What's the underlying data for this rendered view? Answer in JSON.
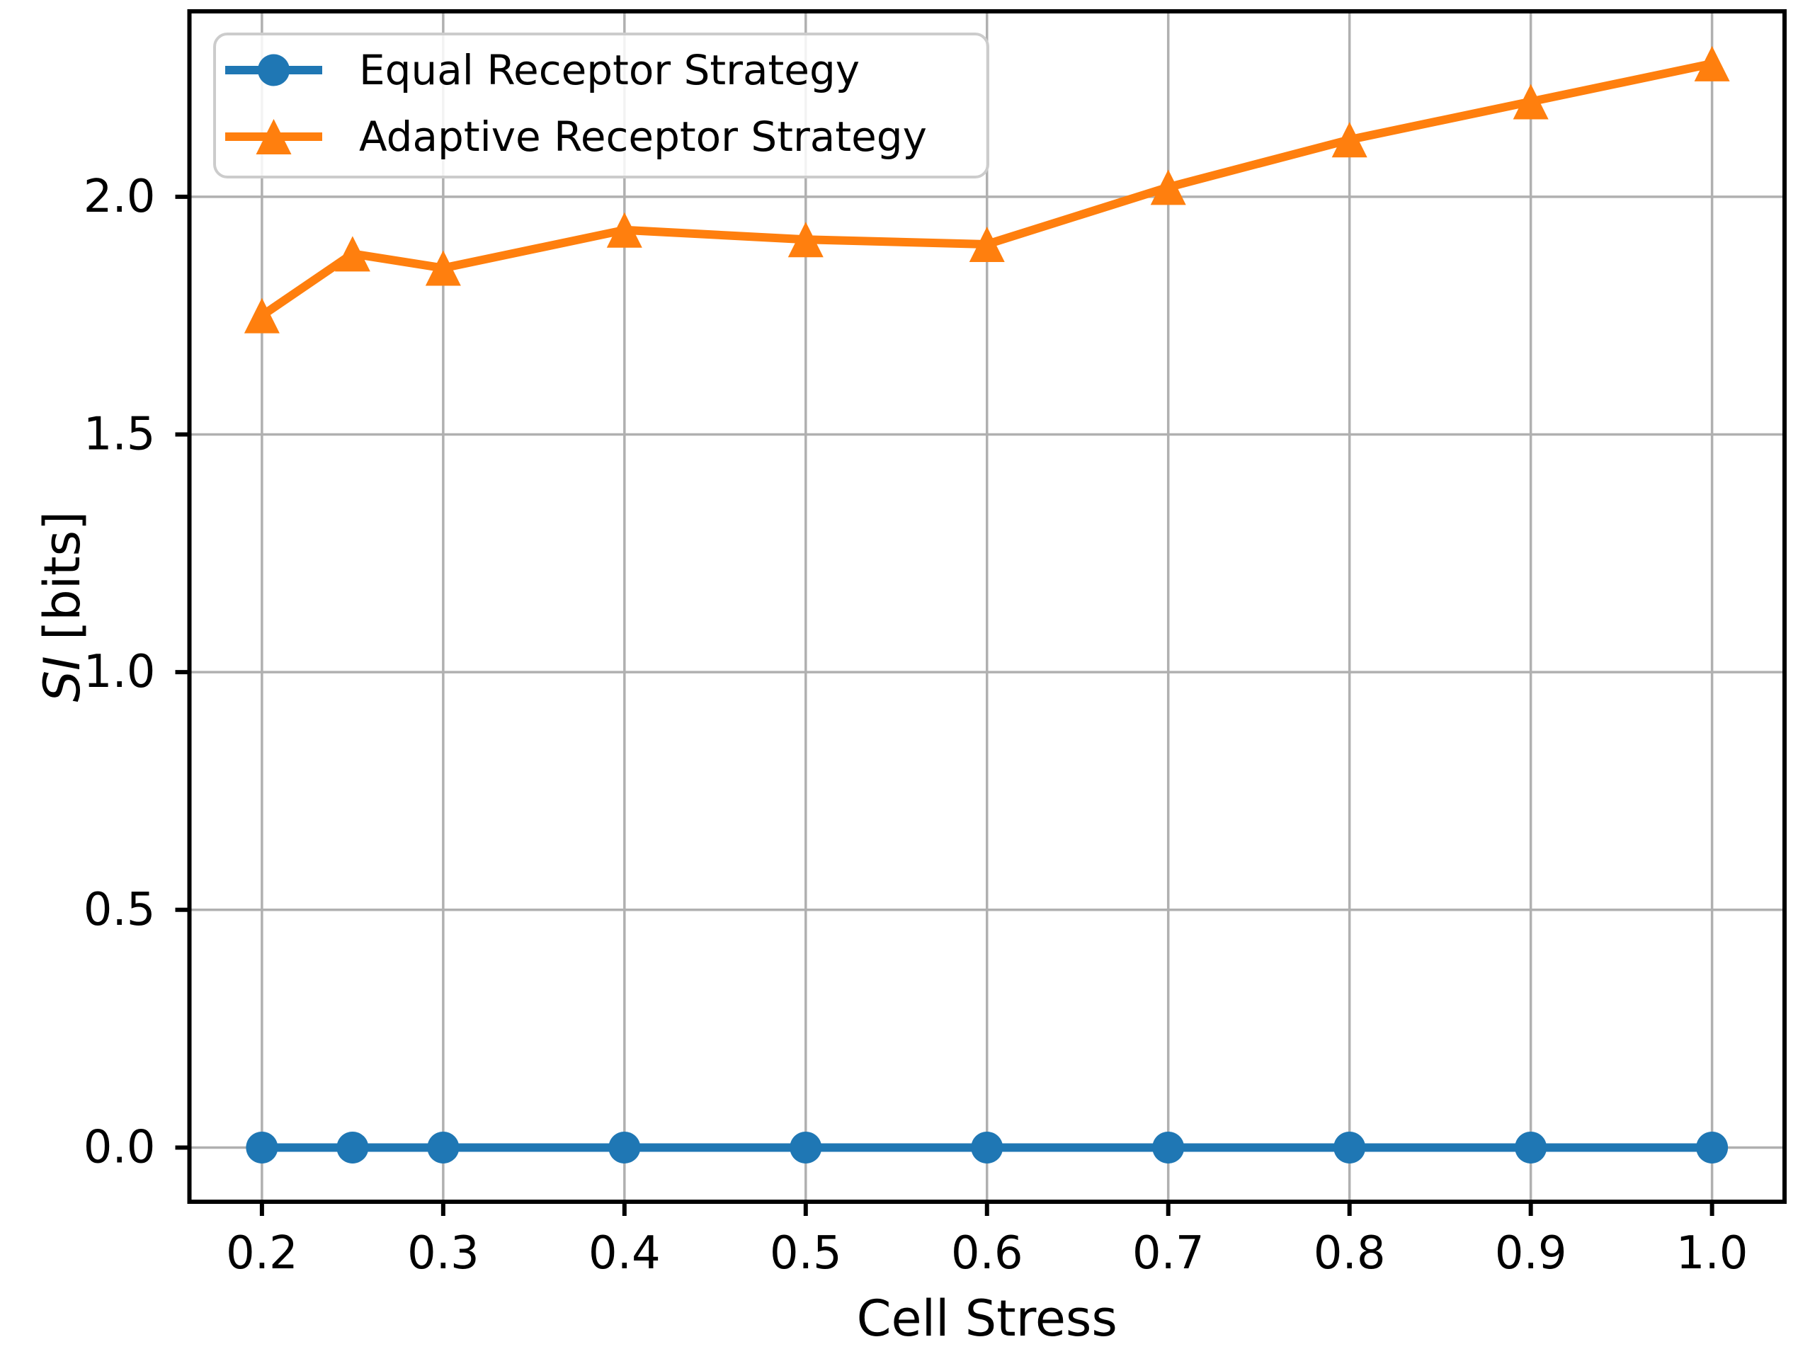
{
  "figure": {
    "background": "#ffffff"
  },
  "chart_data": {
    "type": "line",
    "title": "",
    "xlabel": "Cell Stress",
    "ylabel": "SI [bits]",
    "ylabel_italic_part": "SI",
    "ylabel_rest_part": " [bits]",
    "x": [
      0.2,
      0.25,
      0.3,
      0.4,
      0.5,
      0.6,
      0.7,
      0.8,
      0.9,
      1.0
    ],
    "series": [
      {
        "name": "Equal Receptor Strategy",
        "marker": "circle",
        "color": "#1f77b4",
        "values": [
          0.0,
          0.0,
          0.0,
          0.0,
          0.0,
          0.0,
          0.0,
          0.0,
          0.0,
          0.0
        ]
      },
      {
        "name": "Adaptive Receptor Strategy",
        "marker": "triangle-up",
        "color": "#ff7f0e",
        "values": [
          1.75,
          1.88,
          1.85,
          1.93,
          1.91,
          1.9,
          2.02,
          2.12,
          2.2,
          2.28
        ]
      }
    ],
    "x_ticks": [
      0.2,
      0.3,
      0.4,
      0.5,
      0.6,
      0.7,
      0.8,
      0.9,
      1.0
    ],
    "x_tick_labels": [
      "0.2",
      "0.3",
      "0.4",
      "0.5",
      "0.6",
      "0.7",
      "0.8",
      "0.9",
      "1.0"
    ],
    "y_ticks": [
      0.0,
      0.5,
      1.0,
      1.5,
      2.0
    ],
    "y_tick_labels": [
      "0.0",
      "0.5",
      "1.0",
      "1.5",
      "2.0"
    ],
    "xlim": [
      0.16,
      1.04
    ],
    "ylim": [
      -0.114,
      2.39
    ],
    "grid": true,
    "grid_color": "#b0b0b0",
    "spine_color": "#000000",
    "tick_color": "#000000",
    "legend": {
      "position": "upper left",
      "edge_color": "#cccccc",
      "face_color": "#ffffff",
      "face_opacity": 0.85,
      "entries": [
        "Equal Receptor Strategy",
        "Adaptive Receptor Strategy"
      ]
    }
  }
}
